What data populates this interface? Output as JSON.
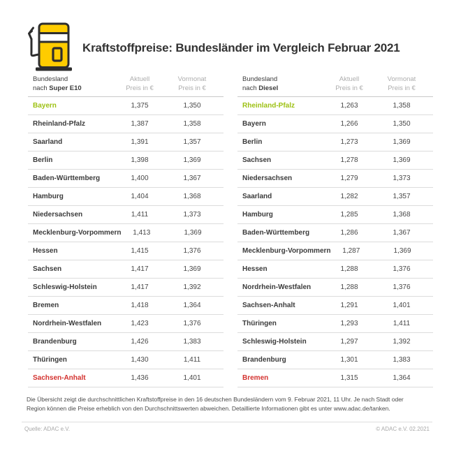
{
  "header": {
    "title": "Kraftstoffpreise: Bundesländer im Vergleich Februar 2021",
    "icon": "fuel-pump-icon"
  },
  "colors": {
    "accent_yellow": "#FFCC00",
    "text_dark": "#333333",
    "highlight_green": "#9DC113",
    "highlight_red": "#D3312E",
    "header_gray": "#ADADAD",
    "divider": "#DCDCDC"
  },
  "tables": [
    {
      "header": {
        "col1_line1": "Bundesland",
        "col1_prefix": "nach ",
        "col1_bold": "Super E10",
        "col2_line1": "Aktuell",
        "col2_line2": "Preis in €",
        "col3_line1": "Vormonat",
        "col3_line2": "Preis in €"
      },
      "rows": [
        {
          "state": "Bayern",
          "aktuell": "1,375",
          "vormonat": "1,350",
          "highlight": "green"
        },
        {
          "state": "Rheinland-Pfalz",
          "aktuell": "1,387",
          "vormonat": "1,358",
          "highlight": "none"
        },
        {
          "state": "Saarland",
          "aktuell": "1,391",
          "vormonat": "1,357",
          "highlight": "none"
        },
        {
          "state": "Berlin",
          "aktuell": "1,398",
          "vormonat": "1,369",
          "highlight": "none"
        },
        {
          "state": "Baden-Württemberg",
          "aktuell": "1,400",
          "vormonat": "1,367",
          "highlight": "none"
        },
        {
          "state": "Hamburg",
          "aktuell": "1,404",
          "vormonat": "1,368",
          "highlight": "none"
        },
        {
          "state": "Niedersachsen",
          "aktuell": "1,411",
          "vormonat": "1,373",
          "highlight": "none"
        },
        {
          "state": "Mecklenburg-Vorpommern",
          "aktuell": "1,413",
          "vormonat": "1,369",
          "highlight": "none"
        },
        {
          "state": "Hessen",
          "aktuell": "1,415",
          "vormonat": "1,376",
          "highlight": "none"
        },
        {
          "state": "Sachsen",
          "aktuell": "1,417",
          "vormonat": "1,369",
          "highlight": "none"
        },
        {
          "state": "Schleswig-Holstein",
          "aktuell": "1,417",
          "vormonat": "1,392",
          "highlight": "none"
        },
        {
          "state": "Bremen",
          "aktuell": "1,418",
          "vormonat": "1,364",
          "highlight": "none"
        },
        {
          "state": "Nordrhein-Westfalen",
          "aktuell": "1,423",
          "vormonat": "1,376",
          "highlight": "none"
        },
        {
          "state": "Brandenburg",
          "aktuell": "1,426",
          "vormonat": "1,383",
          "highlight": "none"
        },
        {
          "state": "Thüringen",
          "aktuell": "1,430",
          "vormonat": "1,411",
          "highlight": "none"
        },
        {
          "state": "Sachsen-Anhalt",
          "aktuell": "1,436",
          "vormonat": "1,401",
          "highlight": "red"
        }
      ]
    },
    {
      "header": {
        "col1_line1": "Bundesland",
        "col1_prefix": "nach ",
        "col1_bold": "Diesel",
        "col2_line1": "Aktuell",
        "col2_line2": "Preis in €",
        "col3_line1": "Vormonat",
        "col3_line2": "Preis in €"
      },
      "rows": [
        {
          "state": "Rheinland-Pfalz",
          "aktuell": "1,263",
          "vormonat": "1,358",
          "highlight": "green"
        },
        {
          "state": "Bayern",
          "aktuell": "1,266",
          "vormonat": "1,350",
          "highlight": "none"
        },
        {
          "state": "Berlin",
          "aktuell": "1,273",
          "vormonat": "1,369",
          "highlight": "none"
        },
        {
          "state": "Sachsen",
          "aktuell": "1,278",
          "vormonat": "1,369",
          "highlight": "none"
        },
        {
          "state": "Niedersachsen",
          "aktuell": "1,279",
          "vormonat": "1,373",
          "highlight": "none"
        },
        {
          "state": "Saarland",
          "aktuell": "1,282",
          "vormonat": "1,357",
          "highlight": "none"
        },
        {
          "state": "Hamburg",
          "aktuell": "1,285",
          "vormonat": "1,368",
          "highlight": "none"
        },
        {
          "state": "Baden-Württemberg",
          "aktuell": "1,286",
          "vormonat": "1,367",
          "highlight": "none"
        },
        {
          "state": "Mecklenburg-Vorpommern",
          "aktuell": "1,287",
          "vormonat": "1,369",
          "highlight": "none"
        },
        {
          "state": "Hessen",
          "aktuell": "1,288",
          "vormonat": "1,376",
          "highlight": "none"
        },
        {
          "state": "Nordrhein-Westfalen",
          "aktuell": "1,288",
          "vormonat": "1,376",
          "highlight": "none"
        },
        {
          "state": "Sachsen-Anhalt",
          "aktuell": "1,291",
          "vormonat": "1,401",
          "highlight": "none"
        },
        {
          "state": "Thüringen",
          "aktuell": "1,293",
          "vormonat": "1,411",
          "highlight": "none"
        },
        {
          "state": "Schleswig-Holstein",
          "aktuell": "1,297",
          "vormonat": "1,392",
          "highlight": "none"
        },
        {
          "state": "Brandenburg",
          "aktuell": "1,301",
          "vormonat": "1,383",
          "highlight": "none"
        },
        {
          "state": "Bremen",
          "aktuell": "1,315",
          "vormonat": "1,364",
          "highlight": "red"
        }
      ]
    }
  ],
  "note": {
    "text": "Die Übersicht zeigt die durchschnittlichen Kraftstoffpreise in den 16 deutschen Bundesländern vom 9. Februar 2021, 11 Uhr. Je nach Stadt oder Region können die Preise erheblich von den Durchschnittswerten abweichen. Detaillierte Informationen gibt es unter www.adac.de/tanken."
  },
  "footer": {
    "source": "Quelle: ADAC e.V.",
    "copyright": "© ADAC e.V. 02.2021"
  },
  "chart_data": [
    {
      "type": "table",
      "title": "Bundesland nach Super E10",
      "columns": [
        "Bundesland nach Super E10",
        "Aktuell Preis in €",
        "Vormonat Preis in €"
      ],
      "rows": [
        [
          "Bayern",
          1.375,
          1.35
        ],
        [
          "Rheinland-Pfalz",
          1.387,
          1.358
        ],
        [
          "Saarland",
          1.391,
          1.357
        ],
        [
          "Berlin",
          1.398,
          1.369
        ],
        [
          "Baden-Württemberg",
          1.4,
          1.367
        ],
        [
          "Hamburg",
          1.404,
          1.368
        ],
        [
          "Niedersachsen",
          1.411,
          1.373
        ],
        [
          "Mecklenburg-Vorpommern",
          1.413,
          1.369
        ],
        [
          "Hessen",
          1.415,
          1.376
        ],
        [
          "Sachsen",
          1.417,
          1.369
        ],
        [
          "Schleswig-Holstein",
          1.417,
          1.392
        ],
        [
          "Bremen",
          1.418,
          1.364
        ],
        [
          "Nordrhein-Westfalen",
          1.423,
          1.376
        ],
        [
          "Brandenburg",
          1.426,
          1.383
        ],
        [
          "Thüringen",
          1.43,
          1.411
        ],
        [
          "Sachsen-Anhalt",
          1.436,
          1.401
        ]
      ],
      "notes": "Cheapest (Bayern) highlighted green, most expensive (Sachsen-Anhalt) highlighted red"
    },
    {
      "type": "table",
      "title": "Bundesland nach Diesel",
      "columns": [
        "Bundesland nach Diesel",
        "Aktuell Preis in €",
        "Vormonat Preis in €"
      ],
      "rows": [
        [
          "Rheinland-Pfalz",
          1.263,
          1.358
        ],
        [
          "Bayern",
          1.266,
          1.35
        ],
        [
          "Berlin",
          1.273,
          1.369
        ],
        [
          "Sachsen",
          1.278,
          1.369
        ],
        [
          "Niedersachsen",
          1.279,
          1.373
        ],
        [
          "Saarland",
          1.282,
          1.357
        ],
        [
          "Hamburg",
          1.285,
          1.368
        ],
        [
          "Baden-Württemberg",
          1.286,
          1.367
        ],
        [
          "Mecklenburg-Vorpommern",
          1.287,
          1.369
        ],
        [
          "Hessen",
          1.288,
          1.376
        ],
        [
          "Nordrhein-Westfalen",
          1.288,
          1.376
        ],
        [
          "Sachsen-Anhalt",
          1.291,
          1.401
        ],
        [
          "Thüringen",
          1.293,
          1.411
        ],
        [
          "Schleswig-Holstein",
          1.297,
          1.392
        ],
        [
          "Brandenburg",
          1.301,
          1.383
        ],
        [
          "Bremen",
          1.315,
          1.364
        ]
      ],
      "notes": "Cheapest (Rheinland-Pfalz) highlighted green, most expensive (Bremen) highlighted red"
    }
  ]
}
